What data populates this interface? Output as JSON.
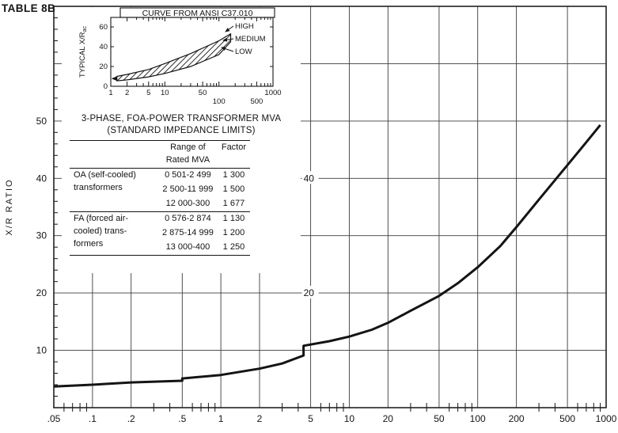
{
  "page": {
    "label": "TABLE 8B"
  },
  "colors": {
    "ink": "#141414",
    "grid": "#3c3c3c",
    "background": "#ffffff"
  },
  "chart_data": [
    {
      "id": "main",
      "type": "line",
      "title": "",
      "xlabel": "",
      "ylabel": "X/R RATIO",
      "x_scale": "log",
      "xlim": [
        0.05,
        1000
      ],
      "ylim": [
        0,
        70
      ],
      "grid": true,
      "x_ticks": [
        {
          "v": 0.05,
          "label": ".05"
        },
        {
          "v": 0.1,
          "label": ".1"
        },
        {
          "v": 0.2,
          "label": ".2"
        },
        {
          "v": 0.5,
          "label": ".5"
        },
        {
          "v": 1,
          "label": "1"
        },
        {
          "v": 2,
          "label": "2"
        },
        {
          "v": 5,
          "label": "5"
        },
        {
          "v": 10,
          "label": "10"
        },
        {
          "v": 20,
          "label": "20"
        },
        {
          "v": 50,
          "label": "50"
        },
        {
          "v": 100,
          "label": "100"
        },
        {
          "v": 200,
          "label": "200"
        },
        {
          "v": 500,
          "label": "500"
        },
        {
          "v": 1000,
          "label": "1000"
        }
      ],
      "y_ticks": [
        10,
        20,
        30,
        40,
        50
      ],
      "inner_y_labels": [
        {
          "text": "40",
          "x": 4.4,
          "y": 40
        },
        {
          "text": "20",
          "x": 4.4,
          "y": 20
        }
      ],
      "curve_x_r_ratio": [
        [
          0.05,
          3.7
        ],
        [
          0.1,
          4.0
        ],
        [
          0.2,
          4.4
        ],
        [
          0.5,
          4.7
        ],
        [
          0.5,
          5.1
        ],
        [
          1,
          5.7
        ],
        [
          2,
          6.8
        ],
        [
          3,
          7.7
        ],
        [
          4.4,
          9.1
        ],
        [
          4.4,
          10.8
        ],
        [
          7,
          11.6
        ],
        [
          10,
          12.4
        ],
        [
          15,
          13.6
        ],
        [
          20,
          14.8
        ],
        [
          30,
          16.9
        ],
        [
          50,
          19.5
        ],
        [
          70,
          21.7
        ],
        [
          100,
          24.5
        ],
        [
          150,
          28.2
        ],
        [
          200,
          31.5
        ],
        [
          300,
          36.3
        ],
        [
          500,
          42.3
        ],
        [
          700,
          46.3
        ],
        [
          900,
          49.3
        ]
      ]
    },
    {
      "id": "ansi-inset",
      "type": "area",
      "title": "CURVE FROM ANSI C37.010",
      "ylabel": "TYPICAL X/R",
      "ylabel_subscript": "ac",
      "x_scale": "log",
      "xlim": [
        1,
        1000
      ],
      "ylim": [
        0,
        69.6
      ],
      "y_ticks": [
        0,
        20,
        40,
        60
      ],
      "x_ticks_row1": [
        {
          "v": 1,
          "label": "1"
        },
        {
          "v": 2,
          "label": "2"
        },
        {
          "v": 5,
          "label": "5"
        },
        {
          "v": 10,
          "label": "10"
        },
        {
          "v": 50,
          "label": "50"
        },
        {
          "v": 1000,
          "label": "1000"
        }
      ],
      "x_ticks_row2": [
        {
          "v": 100,
          "label": "100"
        },
        {
          "v": 500,
          "label": "500"
        }
      ],
      "band_labels": [
        "HIGH",
        "MEDIUM",
        "LOW"
      ],
      "band_upper": [
        [
          1.3,
          10
        ],
        [
          2,
          12
        ],
        [
          5,
          17
        ],
        [
          10,
          23
        ],
        [
          30,
          33
        ],
        [
          100,
          46
        ],
        [
          165,
          53
        ]
      ],
      "band_lower": [
        [
          1.3,
          5.5
        ],
        [
          2,
          6.5
        ],
        [
          5,
          9.5
        ],
        [
          10,
          13
        ],
        [
          30,
          20
        ],
        [
          100,
          32
        ],
        [
          165,
          45
        ]
      ]
    }
  ],
  "impedance_table": {
    "title_line1": "3-PHASE, FOA-POWER TRANSFORMER MVA",
    "title_line2": "(STANDARD IMPEDANCE LIMITS)",
    "header": {
      "range_line1": "Range of",
      "range_line2": "Rated MVA",
      "factor": "Factor"
    },
    "groups": [
      {
        "label_lines": [
          "OA (self-cooled)",
          "transformers"
        ],
        "ranges": [
          "0 501-2 499",
          "2 500-11 999",
          "12 000-300"
        ],
        "factors": [
          "1 300",
          "1 500",
          "1 677"
        ]
      },
      {
        "label_lines": [
          "FA (forced air-",
          "cooled) trans-",
          "formers"
        ],
        "ranges": [
          "0 576-2 874",
          "2 875-14 999",
          "13 000-400"
        ],
        "factors": [
          "1 130",
          "1 200",
          "1 250"
        ]
      }
    ]
  }
}
